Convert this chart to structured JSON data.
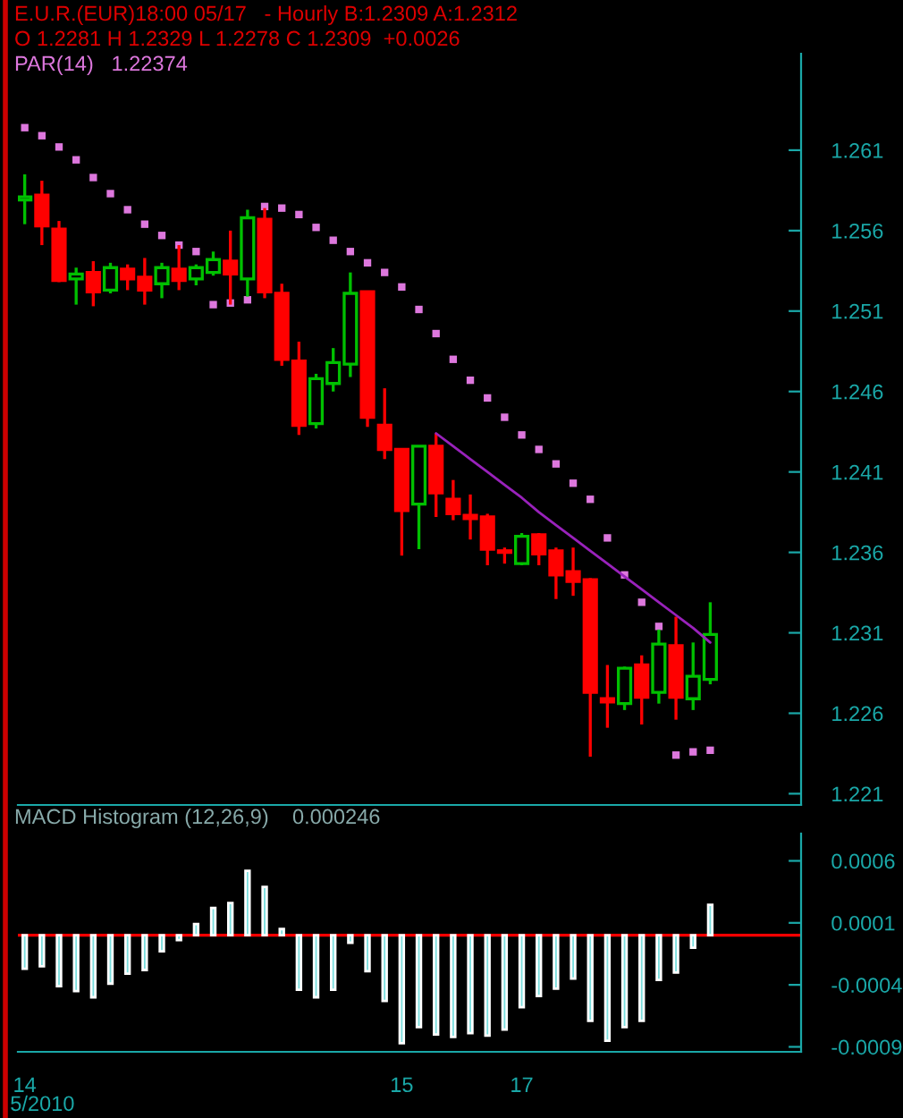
{
  "chart_data": [
    {
      "type": "candlestick",
      "title": "E.U.R.(EUR)18:00 05/17   - Hourly B:1.2309 A:1.2312",
      "subtitle": "O 1.2281 H 1.2329 L 1.2278 C 1.2309  +0.0026",
      "categories": [
        null,
        null,
        null,
        null,
        null,
        null,
        null,
        null,
        null,
        null,
        null,
        null,
        null,
        null,
        null,
        null,
        null,
        null,
        null,
        null,
        null,
        null,
        null,
        null,
        null,
        null,
        null,
        null,
        null,
        null,
        null,
        null,
        null,
        null,
        null,
        null,
        null,
        null,
        null,
        null,
        null
      ],
      "ohlc": [
        [
          1.2579,
          1.2595,
          1.2564,
          1.2581
        ],
        [
          1.2582,
          1.2591,
          1.2551,
          1.2563
        ],
        [
          1.2561,
          1.2566,
          1.2528,
          1.2529
        ],
        [
          1.253,
          1.2537,
          1.2514,
          1.2533
        ],
        [
          1.2534,
          1.2541,
          1.2513,
          1.2522
        ],
        [
          1.2523,
          1.254,
          1.2521,
          1.2537
        ],
        [
          1.2536,
          1.2539,
          1.2523,
          1.253
        ],
        [
          1.2531,
          1.2543,
          1.2514,
          1.2523
        ],
        [
          1.2527,
          1.254,
          1.2518,
          1.2537
        ],
        [
          1.2536,
          1.2551,
          1.2523,
          1.2529
        ],
        [
          1.253,
          1.2539,
          1.2526,
          1.2537
        ],
        [
          1.2534,
          1.2547,
          1.2532,
          1.2542
        ],
        [
          1.2541,
          1.256,
          1.2514,
          1.2533
        ],
        [
          1.253,
          1.2573,
          1.2519,
          1.2568
        ],
        [
          1.2567,
          1.2574,
          1.2518,
          1.2522
        ],
        [
          1.2521,
          1.2527,
          1.2476,
          1.248
        ],
        [
          1.2479,
          1.2491,
          1.2433,
          1.2439
        ],
        [
          1.244,
          1.2471,
          1.2437,
          1.2468
        ],
        [
          1.2465,
          1.2487,
          1.246,
          1.2478
        ],
        [
          1.2477,
          1.2534,
          1.2469,
          1.2521
        ],
        [
          1.2522,
          1.2522,
          1.2438,
          1.2444
        ],
        [
          1.2439,
          1.2462,
          1.2418,
          1.2424
        ],
        [
          1.2424,
          1.2424,
          1.2358,
          1.2386
        ],
        [
          1.239,
          1.2426,
          1.2362,
          1.2426
        ],
        [
          1.2426,
          1.2434,
          1.2382,
          1.2397
        ],
        [
          1.2393,
          1.2405,
          1.238,
          1.2384
        ],
        [
          1.2383,
          1.2396,
          1.2368,
          1.2381
        ],
        [
          1.2382,
          1.2384,
          1.2352,
          1.2362
        ],
        [
          1.2361,
          1.2363,
          1.2353,
          1.236
        ],
        [
          1.2353,
          1.2372,
          1.2352,
          1.237
        ],
        [
          1.2371,
          1.2372,
          1.2352,
          1.2359
        ],
        [
          1.2361,
          1.2363,
          1.2331,
          1.2346
        ],
        [
          1.2348,
          1.2363,
          1.2333,
          1.2342
        ],
        [
          1.2343,
          1.2344,
          1.2233,
          1.2273
        ],
        [
          1.2269,
          1.229,
          1.2251,
          1.2267
        ],
        [
          1.2266,
          1.2289,
          1.2262,
          1.2288
        ],
        [
          1.229,
          1.2296,
          1.2253,
          1.227
        ],
        [
          1.2273,
          1.2312,
          1.2266,
          1.2303
        ],
        [
          1.2302,
          1.232,
          1.2256,
          1.227
        ],
        [
          1.2269,
          1.2304,
          1.2262,
          1.2283
        ],
        [
          1.2281,
          1.2329,
          1.2278,
          1.2309
        ]
      ],
      "colors": [
        "#00c000",
        "#ff0000",
        "#ff0000",
        "#00c000",
        "#ff0000",
        "#00c000",
        "#ff0000",
        "#ff0000",
        "#00c000",
        "#ff0000",
        "#00c000",
        "#00c000",
        "#ff0000",
        "#00c000",
        "#ff0000",
        "#ff0000",
        "#ff0000",
        "#00c000",
        "#00c000",
        "#00c000",
        "#ff0000",
        "#ff0000",
        "#ff0000",
        "#00c000",
        "#ff0000",
        "#ff0000",
        "#ff0000",
        "#ff0000",
        "#ff0000",
        "#00c000",
        "#ff0000",
        "#ff0000",
        "#ff0000",
        "#ff0000",
        "#ff0000",
        "#00c000",
        "#ff0000",
        "#00c000",
        "#ff0000",
        "#00c000",
        "#00c000"
      ],
      "series": [
        {
          "name": "PAR(14)   1.22374",
          "type": "scatter",
          "marker": "square",
          "color": "#dd77dd",
          "values": [
            1.2624,
            1.2619,
            1.2612,
            1.2604,
            1.2593,
            1.2583,
            1.2573,
            1.2564,
            1.2557,
            1.2551,
            1.2547,
            1.2514,
            1.2515,
            1.2517,
            1.2575,
            1.2574,
            1.257,
            1.2562,
            1.2554,
            1.2547,
            1.254,
            1.2534,
            1.2525,
            1.2511,
            1.2496,
            1.248,
            1.2467,
            1.2456,
            1.2444,
            1.2433,
            1.2424,
            1.2415,
            1.2403,
            1.2393,
            1.2369,
            1.2346,
            1.2329,
            1.2314,
            1.2234,
            1.2236,
            1.2237
          ]
        },
        {
          "type": "line",
          "color": "#9922bb",
          "values": [
            null,
            null,
            null,
            null,
            null,
            null,
            null,
            null,
            null,
            null,
            null,
            null,
            null,
            null,
            null,
            null,
            null,
            null,
            null,
            null,
            null,
            null,
            null,
            null,
            1.2434,
            1.2426,
            1.2418,
            1.241,
            1.2402,
            1.2394,
            1.2385,
            1.2377,
            1.2369,
            1.2361,
            1.2353,
            1.2345,
            1.2337,
            1.2329,
            1.2321,
            1.2313,
            1.2304
          ]
        }
      ],
      "ylim": [
        1.2203,
        1.267
      ],
      "yticks": [
        1.221,
        1.226,
        1.231,
        1.236,
        1.241,
        1.246,
        1.251,
        1.256,
        1.261
      ],
      "tick_labels": "y",
      "grid": false,
      "legend": false
    },
    {
      "type": "bar",
      "title": "MACD Histogram (12,26,9)    0.000246",
      "xlabel": "5/2010",
      "categories": [
        "14",
        null,
        null,
        null,
        null,
        null,
        null,
        null,
        null,
        null,
        null,
        null,
        null,
        null,
        null,
        null,
        null,
        null,
        null,
        null,
        null,
        null,
        "15",
        null,
        null,
        null,
        null,
        null,
        null,
        "17",
        null,
        null,
        null,
        null,
        null,
        null,
        null,
        null,
        null,
        null,
        null
      ],
      "series": [
        {
          "color": "#77dddd",
          "values": [
            -0.00027,
            -0.00025,
            -0.00041,
            -0.00045,
            -0.0005,
            -0.00039,
            -0.00031,
            -0.00028,
            -0.00013,
            -4e-05,
            9e-05,
            0.00022,
            0.00026,
            0.00052,
            0.00039,
            5e-05,
            -0.00044,
            -0.0005,
            -0.00044,
            -6e-05,
            -0.00029,
            -0.00053,
            -0.00087,
            -0.00074,
            -0.0008,
            -0.00082,
            -0.00079,
            -0.00081,
            -0.00076,
            -0.00058,
            -0.00049,
            -0.00043,
            -0.00035,
            -0.00069,
            -0.00085,
            -0.00074,
            -0.00069,
            -0.00036,
            -0.0003,
            -0.0001,
            0.000246
          ]
        }
      ],
      "ref_lines": [
        {
          "axis": "y",
          "value": 0,
          "color": "#ff0000"
        }
      ],
      "ylim": [
        -0.00094,
        0.00082
      ],
      "yticks": [
        {
          "value": 0.0006,
          "label": "0.0006"
        },
        {
          "value": 0.0001,
          "label": "0.0001"
        },
        {
          "value": -0.0004,
          "label": "-0.0004"
        },
        {
          "value": -0.0009,
          "label": "-0.0009"
        }
      ],
      "grid": false,
      "legend": false
    }
  ]
}
